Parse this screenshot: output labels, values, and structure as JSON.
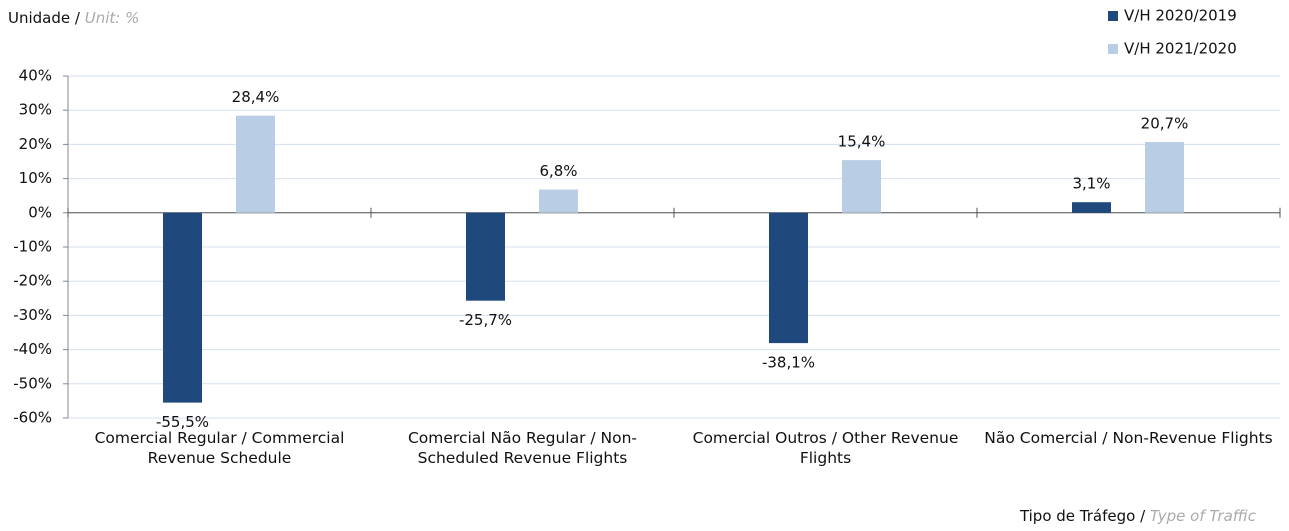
{
  "chart_data": {
    "type": "bar",
    "unit_label": {
      "main": "Unidade /",
      "translation": "Unit: %"
    },
    "x_label": {
      "main": "Tipo de Tráfego /",
      "translation": "Type of Traffic"
    },
    "categories": [
      "Comercial Regular  / Commercial Revenue Schedule",
      "Comercial Não Regular / Non-Scheduled Revenue Flights",
      "Comercial Outros / Other Revenue Flights",
      "Não Comercial / Non-Revenue Flights"
    ],
    "series": [
      {
        "name": "V/H 2020/2019",
        "color": "#1f497d",
        "values": [
          -55.5,
          -25.7,
          -38.1,
          3.1
        ],
        "value_labels": [
          "-55,5%",
          "-25,7%",
          "-38,1%",
          "3,1%"
        ]
      },
      {
        "name": "V/H 2021/2020",
        "color": "#b9cde5",
        "values": [
          28.4,
          6.8,
          15.4,
          20.7
        ],
        "value_labels": [
          "28,4%",
          "6,8%",
          "15,4%",
          "20,7%"
        ]
      }
    ],
    "ylim": [
      -60,
      40
    ],
    "yticks": [
      {
        "value": -60,
        "label": "-60%"
      },
      {
        "value": -50,
        "label": "-50%"
      },
      {
        "value": -40,
        "label": "-40%"
      },
      {
        "value": -30,
        "label": "-30%"
      },
      {
        "value": -20,
        "label": "-20%"
      },
      {
        "value": -10,
        "label": "-10%"
      },
      {
        "value": 0,
        "label": "0%"
      },
      {
        "value": 10,
        "label": "10%"
      },
      {
        "value": 20,
        "label": "20%"
      },
      {
        "value": 30,
        "label": "30%"
      },
      {
        "value": 40,
        "label": "40%"
      }
    ],
    "grid": true,
    "legend": "top-right"
  }
}
